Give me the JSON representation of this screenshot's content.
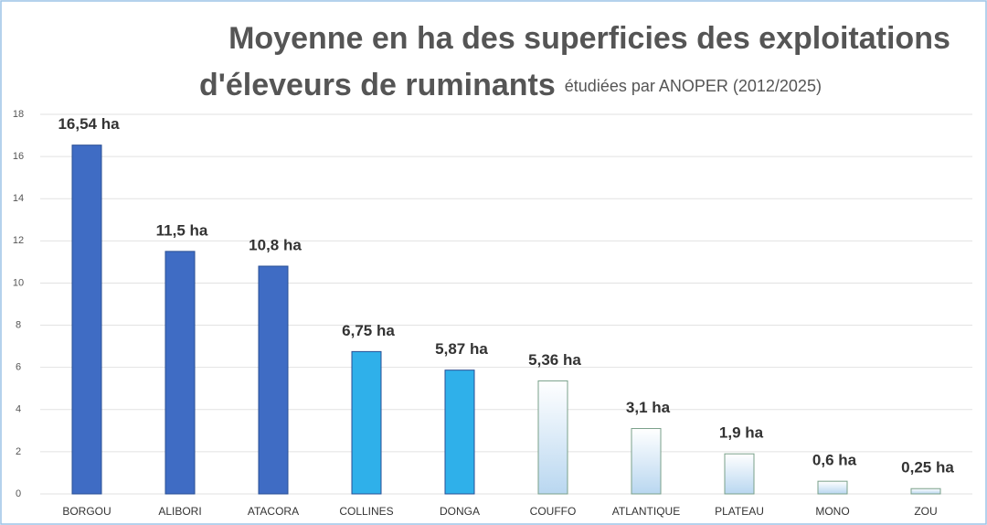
{
  "chart_data": {
    "type": "bar",
    "title": "Moyenne en ha des superficies des exploitations",
    "title_line2": "d'éleveurs de ruminants",
    "subtitle": "étudiées par ANOPER (2012/2025)",
    "categories": [
      "BORGOU",
      "ALIBORI",
      "ATACORA",
      "COLLINES",
      "DONGA",
      "COUFFO",
      "ATLANTIQUE",
      "PLATEAU",
      "MONO",
      "ZOU"
    ],
    "values": [
      16.54,
      11.5,
      10.8,
      6.75,
      5.87,
      5.36,
      3.1,
      1.9,
      0.6,
      0.25
    ],
    "value_labels": [
      "16,54 ha",
      "11,5 ha",
      "10,8 ha",
      "6,75 ha",
      "5,87 ha",
      "5,36 ha",
      "3,1 ha",
      "1,9 ha",
      "0,6 ha",
      "0,25 ha"
    ],
    "colors": [
      "#3f6cc4",
      "#3f6cc4",
      "#3f6cc4",
      "#2fb0ea",
      "#2fb0ea",
      "#b9d7f0",
      "#b9d7f0",
      "#b9d7f0",
      "#b9d7f0",
      "#b9d7f0"
    ],
    "ylim": [
      0,
      18
    ],
    "yticks": [
      0,
      2,
      4,
      6,
      8,
      10,
      12,
      14,
      16,
      18
    ],
    "grid": true
  }
}
